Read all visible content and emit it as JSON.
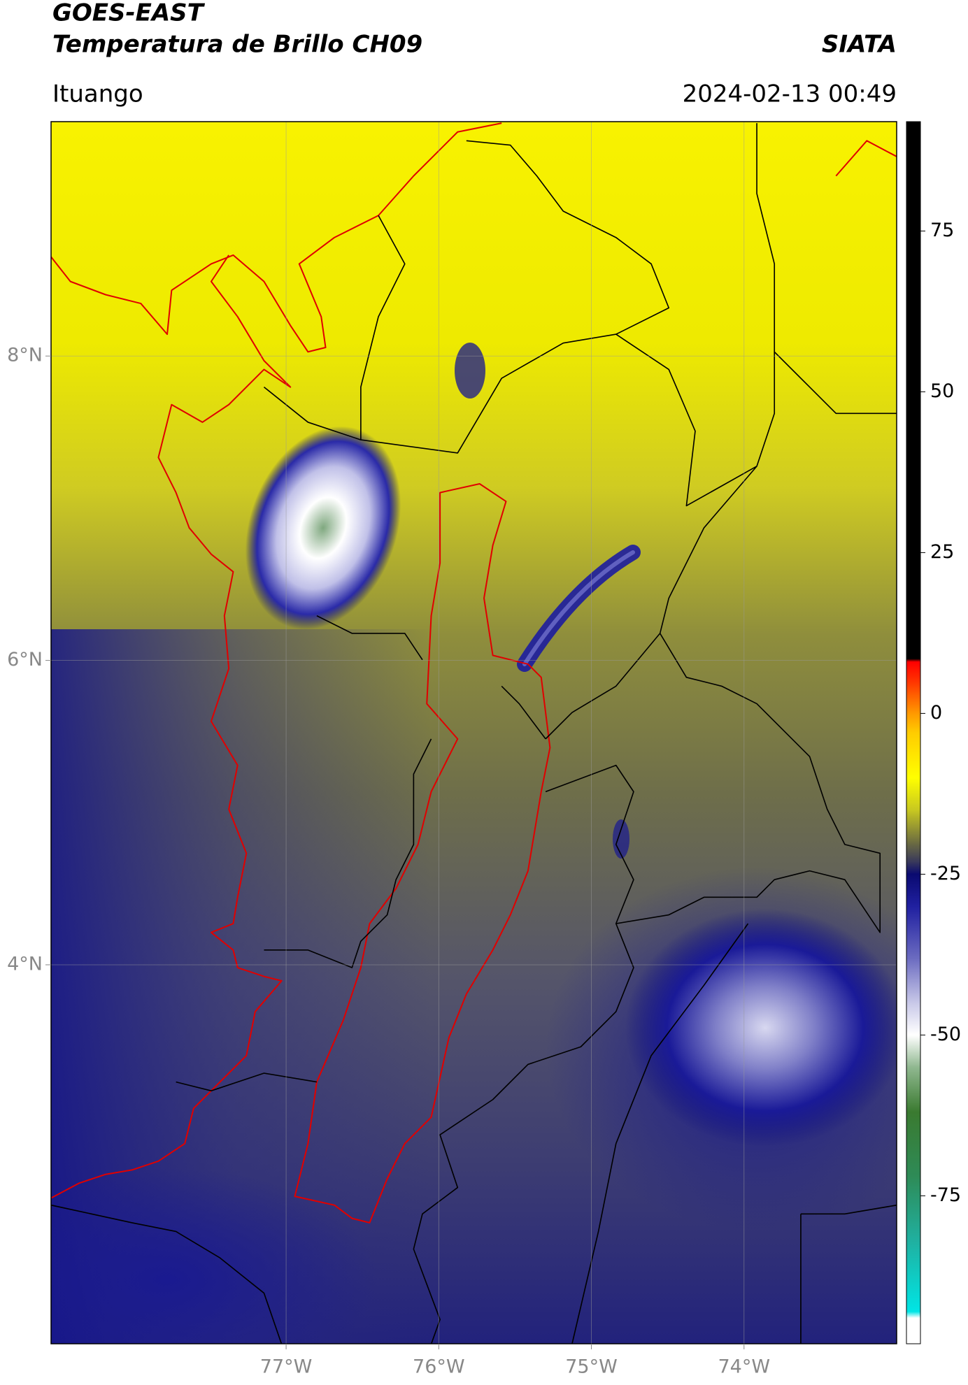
{
  "header": {
    "title": "GOES-EAST",
    "subtitle": "Temperatura de Brillo CH09",
    "source": "SIATA",
    "location": "Ituango",
    "datetime": "2024-02-13 00:49"
  },
  "map": {
    "lonlim": [
      -78.54,
      -73.0
    ],
    "latlim": [
      1.51,
      9.54
    ],
    "lonticks": [
      {
        "value": -77,
        "label": "77°W"
      },
      {
        "value": -76,
        "label": "76°W"
      },
      {
        "value": -75,
        "label": "75°W"
      },
      {
        "value": -74,
        "label": "74°W"
      }
    ],
    "latticks": [
      {
        "value": 8,
        "label": "8°N"
      },
      {
        "value": 6,
        "label": "6°N"
      },
      {
        "value": 4,
        "label": "4°N"
      }
    ],
    "grid": true
  },
  "colorbar": {
    "lim": [
      -98,
      92
    ],
    "ticks": [
      75,
      50,
      25,
      0,
      -25,
      -50,
      -75
    ],
    "stops": [
      {
        "value": -98,
        "color": "#ffffff"
      },
      {
        "value": -94,
        "color": "#ffffff"
      },
      {
        "value": -93,
        "color": "#00e5e5"
      },
      {
        "value": -82,
        "color": "#20b0a0"
      },
      {
        "value": -72,
        "color": "#2e8b57"
      },
      {
        "value": -62,
        "color": "#3a7a30"
      },
      {
        "value": -55,
        "color": "#90b890"
      },
      {
        "value": -50,
        "color": "#ffffff"
      },
      {
        "value": -45,
        "color": "#c8c8e8"
      },
      {
        "value": -38,
        "color": "#6a6ac0"
      },
      {
        "value": -30,
        "color": "#2020a0"
      },
      {
        "value": -25,
        "color": "#0a0a70"
      },
      {
        "value": -23,
        "color": "#3a3a5a"
      },
      {
        "value": -20,
        "color": "#6e6e40"
      },
      {
        "value": -15,
        "color": "#c8c820"
      },
      {
        "value": -10,
        "color": "#ffff00"
      },
      {
        "value": -3,
        "color": "#ffcc00"
      },
      {
        "value": 0,
        "color": "#ff9900"
      },
      {
        "value": 5,
        "color": "#ff3300"
      },
      {
        "value": 8,
        "color": "#ff0000"
      },
      {
        "value": 8.5,
        "color": "#000000"
      },
      {
        "value": 92,
        "color": "#000000"
      }
    ]
  }
}
